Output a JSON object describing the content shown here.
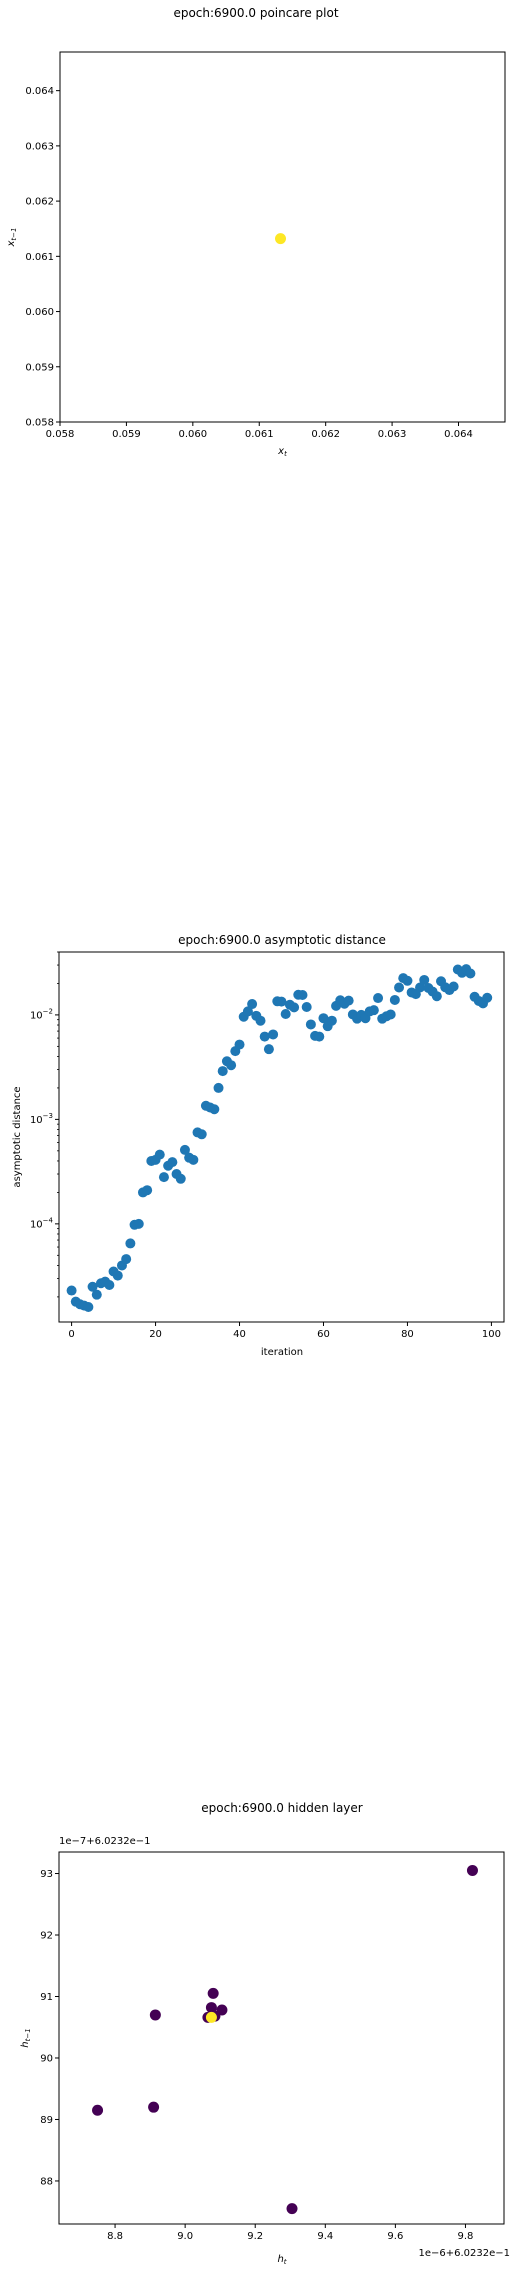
{
  "chart_data": [
    {
      "type": "scatter",
      "title": "epoch:6900.0 poincare plot",
      "xlabel": "x_t",
      "ylabel": "x_{t-1}",
      "xlim": [
        0.058,
        0.0647
      ],
      "ylim": [
        0.058,
        0.0647
      ],
      "xticks": [
        "0.058",
        "0.059",
        "0.060",
        "0.061",
        "0.062",
        "0.063",
        "0.064"
      ],
      "yticks": [
        "0.058",
        "0.059",
        "0.060",
        "0.061",
        "0.062",
        "0.063",
        "0.064"
      ],
      "grid": false,
      "colors": {
        "point": "#fde725",
        "axis": "#000000"
      },
      "points": [
        {
          "x": 0.06132,
          "y": 0.06132
        }
      ]
    },
    {
      "type": "scatter",
      "title": "epoch:6900.0 asymptotic distance",
      "xlabel": "iteration",
      "ylabel": "asymptotic distance",
      "xlim": [
        -3,
        103
      ],
      "ylim": [
        1.15e-05,
        0.04
      ],
      "yscale": "log",
      "xticks": [
        "0",
        "20",
        "40",
        "60",
        "80",
        "100"
      ],
      "yticks": [
        "10^-4",
        "10^-3",
        "10^-2"
      ],
      "grid": false,
      "colors": {
        "point": "#1f77b4",
        "axis": "#000000"
      },
      "x": [
        0,
        1,
        2,
        3,
        4,
        5,
        6,
        7,
        8,
        9,
        10,
        11,
        12,
        13,
        14,
        15,
        16,
        17,
        18,
        19,
        20,
        21,
        22,
        23,
        24,
        25,
        26,
        27,
        28,
        29,
        30,
        31,
        32,
        33,
        34,
        35,
        36,
        37,
        38,
        39,
        40,
        41,
        42,
        43,
        44,
        45,
        46,
        47,
        48,
        49,
        50,
        51,
        52,
        53,
        54,
        55,
        56,
        57,
        58,
        59,
        60,
        61,
        62,
        63,
        64,
        65,
        66,
        67,
        68,
        69,
        70,
        71,
        72,
        73,
        74,
        75,
        76,
        77,
        78,
        79,
        80,
        81,
        82,
        83,
        84,
        85,
        86,
        87,
        88,
        89,
        90,
        91,
        92,
        93,
        94,
        95,
        96,
        97,
        98,
        99
      ],
      "values": [
        2.3e-05,
        1.8e-05,
        1.7e-05,
        1.65e-05,
        1.6e-05,
        2.5e-05,
        2.1e-05,
        2.7e-05,
        2.8e-05,
        2.6e-05,
        3.5e-05,
        3.2e-05,
        4e-05,
        4.6e-05,
        6.5e-05,
        9.8e-05,
        0.0001,
        0.0002,
        0.00021,
        0.0004,
        0.00041,
        0.00046,
        0.00028,
        0.00036,
        0.00039,
        0.0003,
        0.00027,
        0.00051,
        0.00043,
        0.00041,
        0.00075,
        0.00072,
        0.00135,
        0.0013,
        0.00125,
        0.002,
        0.0029,
        0.0036,
        0.0033,
        0.0045,
        0.0052,
        0.0096,
        0.0108,
        0.0127,
        0.0098,
        0.0088,
        0.0062,
        0.0047,
        0.0065,
        0.0135,
        0.0134,
        0.0102,
        0.0125,
        0.0118,
        0.0156,
        0.0155,
        0.0119,
        0.0081,
        0.0063,
        0.0062,
        0.0093,
        0.0078,
        0.0088,
        0.0122,
        0.0138,
        0.0128,
        0.0137,
        0.0101,
        0.0092,
        0.01,
        0.0093,
        0.0108,
        0.0111,
        0.0145,
        0.0092,
        0.0097,
        0.0101,
        0.0139,
        0.0183,
        0.0225,
        0.0212,
        0.0164,
        0.0158,
        0.0183,
        0.0216,
        0.0181,
        0.0167,
        0.0151,
        0.021,
        0.0184,
        0.0173,
        0.0187,
        0.0272,
        0.0253,
        0.0274,
        0.0249,
        0.0149,
        0.0136,
        0.0129,
        0.0146
      ]
    },
    {
      "type": "scatter",
      "title": "epoch:6900.0 hidden layer",
      "xlabel": "h_t",
      "ylabel": "h_{t-1}",
      "x_offset_text": "1e−6+6.0232e−1",
      "y_offset_text": "1e−7+6.0232e−1",
      "xlim": [
        8.64,
        9.91
      ],
      "ylim": [
        87.3,
        93.35
      ],
      "xticks": [
        "8.8",
        "9.0",
        "9.2",
        "9.4",
        "9.6",
        "9.8"
      ],
      "yticks": [
        "88",
        "89",
        "90",
        "91",
        "92",
        "93"
      ],
      "grid": false,
      "colors": {
        "dark": "#440154",
        "bright": "#fde725",
        "axis": "#000000"
      },
      "points": [
        {
          "x": 8.75,
          "y": 89.15,
          "c": "dark"
        },
        {
          "x": 8.91,
          "y": 89.2,
          "c": "dark"
        },
        {
          "x": 8.915,
          "y": 90.7,
          "c": "dark"
        },
        {
          "x": 9.08,
          "y": 91.05,
          "c": "dark"
        },
        {
          "x": 9.075,
          "y": 90.82,
          "c": "dark"
        },
        {
          "x": 9.105,
          "y": 90.78,
          "c": "dark"
        },
        {
          "x": 9.085,
          "y": 90.68,
          "c": "dark"
        },
        {
          "x": 9.065,
          "y": 90.66,
          "c": "dark"
        },
        {
          "x": 9.305,
          "y": 87.55,
          "c": "dark"
        },
        {
          "x": 9.82,
          "y": 93.05,
          "c": "dark"
        },
        {
          "x": 9.075,
          "y": 90.66,
          "c": "bright"
        }
      ]
    }
  ]
}
